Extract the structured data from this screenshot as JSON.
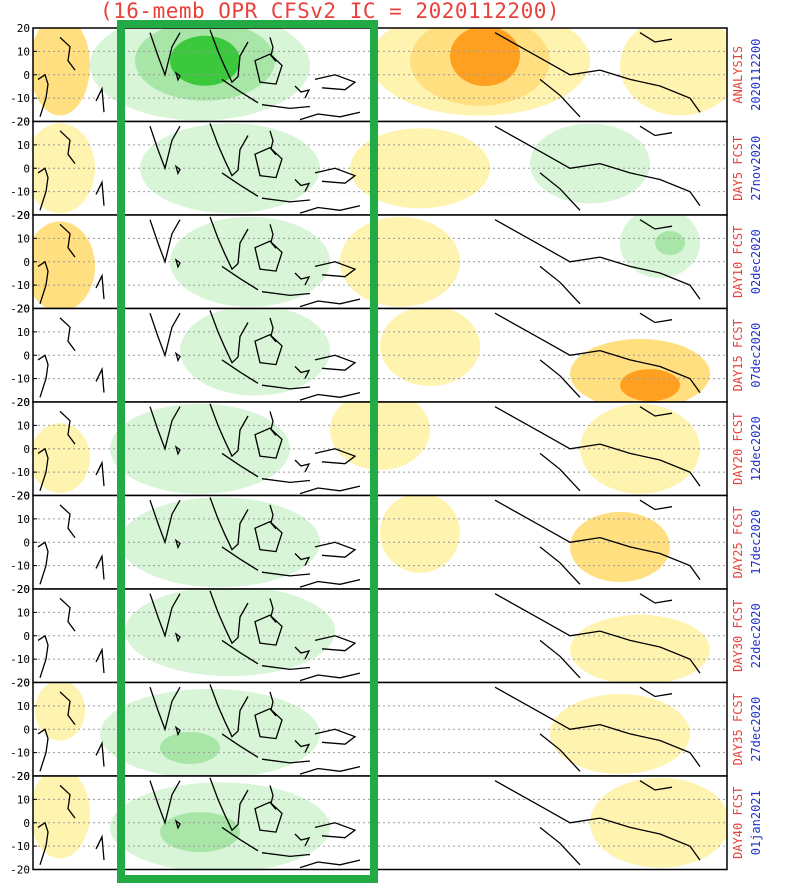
{
  "title": "(16-memb OPR CFSv2 IC = 2020112200)",
  "latitude_ticks": [
    "20",
    "10",
    "0",
    "-10",
    "-20"
  ],
  "panels": [
    {
      "label": "ANALYSIS",
      "date": "2020112200"
    },
    {
      "label": "DAY5 FCST",
      "date": "27nov2020"
    },
    {
      "label": "DAY10 FCST",
      "date": "02dec2020"
    },
    {
      "label": "DAY15 FCST",
      "date": "07dec2020"
    },
    {
      "label": "DAY20 FCST",
      "date": "12dec2020"
    },
    {
      "label": "DAY25 FCST",
      "date": "17dec2020"
    },
    {
      "label": "DAY30 FCST",
      "date": "22dec2020"
    },
    {
      "label": "DAY35 FCST",
      "date": "27dec2020"
    },
    {
      "label": "DAY40 FCST",
      "date": "01jan2021"
    }
  ],
  "colors": {
    "title": "#e8403a",
    "label": "#e8403a",
    "date": "#2233cc",
    "highlight_box": "#22aa44",
    "green_light": "#d8f5d8",
    "green_mid": "#a8e6a8",
    "green_dark": "#3cc83c",
    "yellow_light": "#fff3b0",
    "yellow_mid": "#ffdf80",
    "orange": "#ffa020"
  }
}
